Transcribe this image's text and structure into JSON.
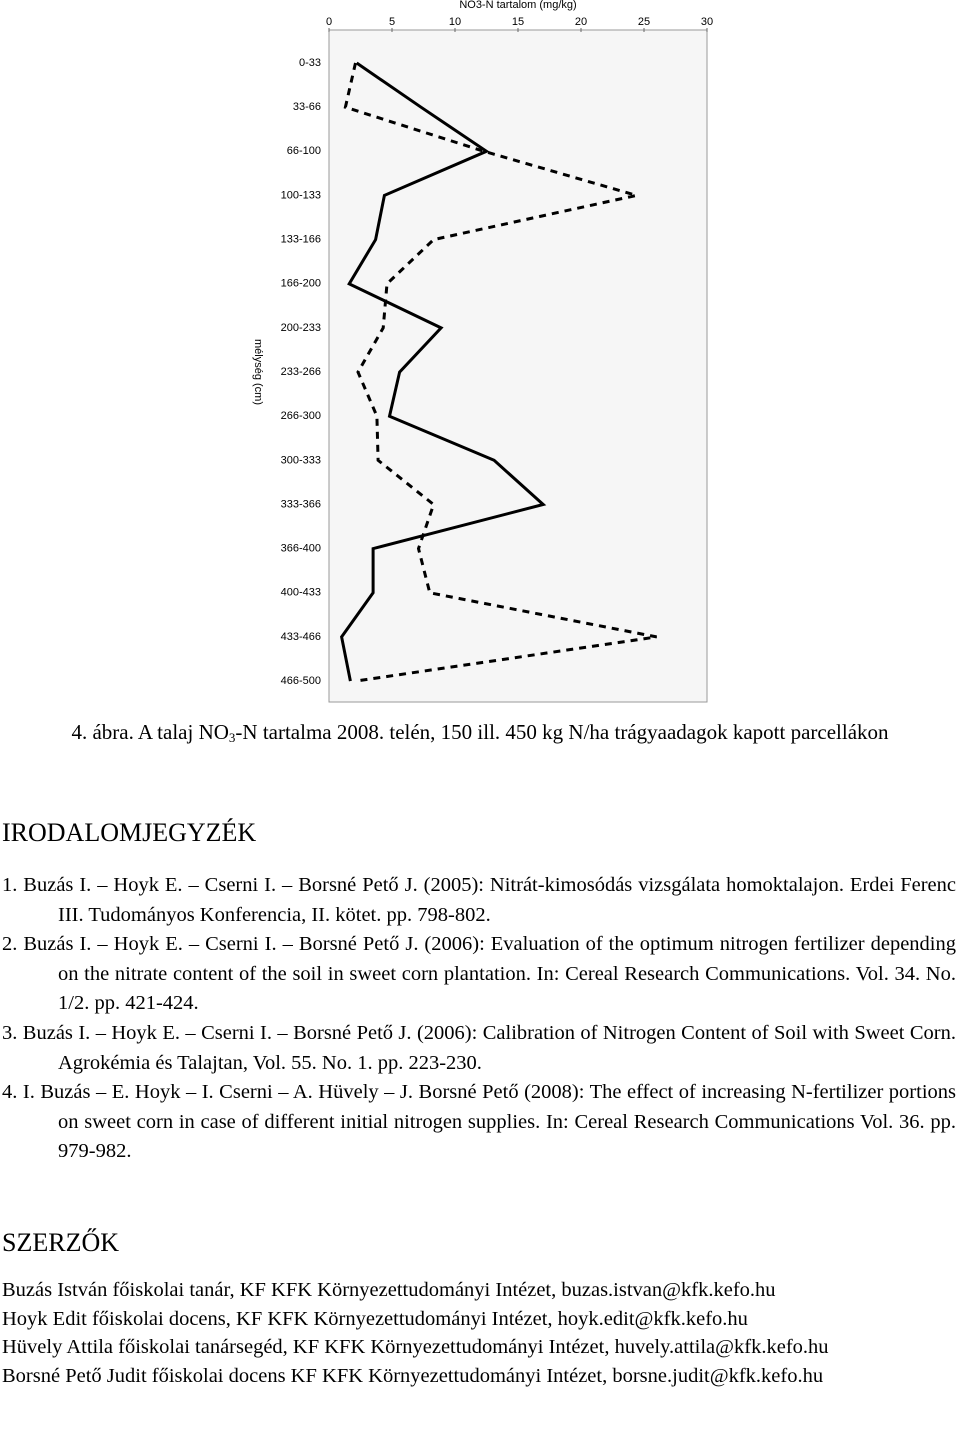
{
  "chart_data": {
    "type": "line",
    "title": "NO3-N tartalom (mg/kg)",
    "y_label": "mélység (cm)",
    "categories": [
      "0-33",
      "33-66",
      "66-100",
      "100-133",
      "133-166",
      "166-200",
      "200-233",
      "233-266",
      "266-300",
      "300-333",
      "333-366",
      "366-400",
      "400-433",
      "433-466",
      "466-500"
    ],
    "series": [
      {
        "color": "#000000",
        "dash": "solid",
        "values": [
          2.2,
          7.3,
          12.5,
          4.4,
          3.7,
          1.6,
          8.9,
          5.6,
          4.8,
          13.1,
          17.0,
          3.5,
          3.5,
          1.0,
          1.7
        ]
      },
      {
        "color": "#000000",
        "dash": "dashed",
        "values": [
          2.1,
          1.3,
          12.3,
          24.4,
          8.3,
          4.6,
          4.3,
          2.3,
          3.8,
          3.9,
          8.3,
          7.1,
          8.0,
          26.0,
          2.1
        ]
      }
    ],
    "xlim": [
      0,
      30
    ],
    "xticks": [
      0,
      5,
      10,
      15,
      20,
      25,
      30
    ]
  },
  "caption": {
    "before": "4. ábra. A talaj NO",
    "sub": "3",
    "after": "-N tartalma 2008. telén, 150 ill. 450 kg N/ha trágyaadagok kapott parcellákon"
  },
  "references": {
    "heading": "IRODALOMJEGYZÉK",
    "items": [
      "1. Buzás I. – Hoyk E. – Cserni I. – Borsné Pető J. (2005): Nitrát-kimosódás vizsgálata homoktalajon. Erdei Ferenc III. Tudományos Konferencia, II. kötet. pp. 798-802.",
      "2. Buzás I. – Hoyk E. – Cserni I. – Borsné Pető J. (2006): Evaluation of the optimum nitrogen fertilizer depending on the nitrate content of the soil in sweet corn plantation. In: Cereal Research Communications. Vol. 34. No. 1/2. pp. 421-424.",
      "3. Buzás I. – Hoyk E. – Cserni I. – Borsné Pető J. (2006): Calibration of Nitrogen Content of Soil with Sweet Corn. Agrokémia és Talajtan, Vol. 55. No. 1. pp. 223-230.",
      "4. I. Buzás – E. Hoyk – I. Cserni – A. Hüvely – J. Borsné Pető (2008): The effect of increasing N-fertilizer portions on sweet corn in case of different initial nitrogen supplies. In: Cereal Research Communications Vol. 36. pp. 979-982."
    ]
  },
  "authors": {
    "heading": "SZERZŐK",
    "items": [
      "Buzás István főiskolai tanár, KF KFK Környezettudományi Intézet, buzas.istvan@kfk.kefo.hu",
      "Hoyk Edit főiskolai docens, KF KFK Környezettudományi Intézet, hoyk.edit@kfk.kefo.hu",
      "Hüvely Attila főiskolai tanársegéd, KF KFK Környezettudományi Intézet, huvely.attila@kfk.kefo.hu",
      "Borsné Pető Judit főiskolai docens KF KFK Környezettudományi Intézet, borsne.judit@kfk.kefo.hu"
    ]
  }
}
